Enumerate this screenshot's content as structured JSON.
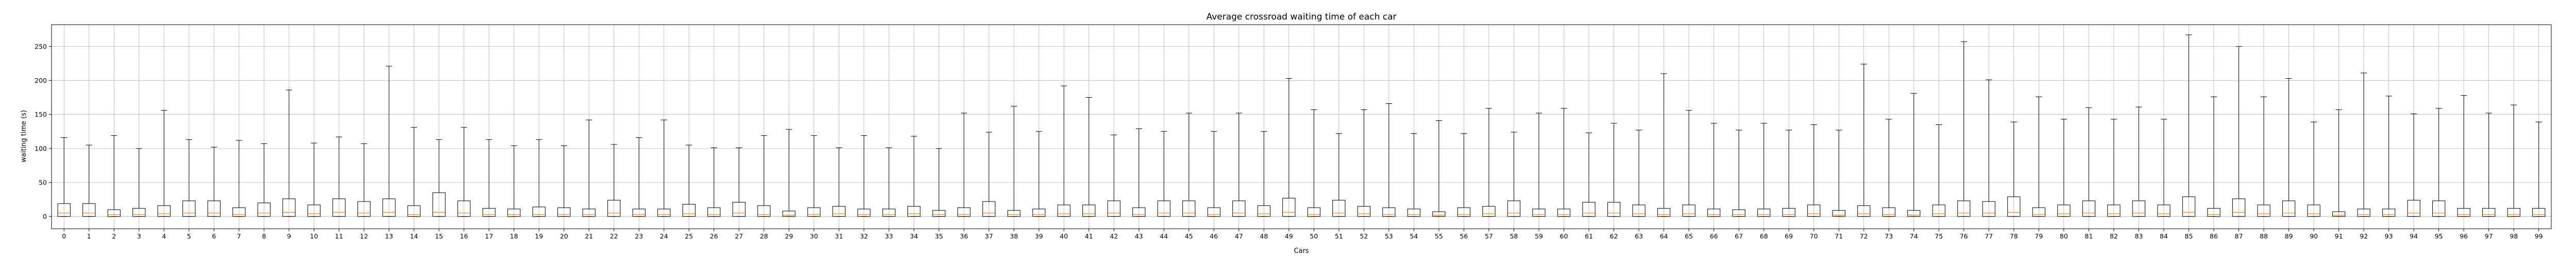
{
  "chart_data": {
    "type": "box",
    "title": "Average crossroad waiting time of each car",
    "xlabel": "Cars",
    "ylabel": "waiting time (s)",
    "ylim": [
      -18,
      282
    ],
    "yticks": [
      0,
      50,
      100,
      150,
      200,
      250
    ],
    "grid": true,
    "categories": [
      "0",
      "1",
      "2",
      "3",
      "4",
      "5",
      "6",
      "7",
      "8",
      "9",
      "10",
      "11",
      "12",
      "13",
      "14",
      "15",
      "16",
      "17",
      "18",
      "19",
      "20",
      "21",
      "22",
      "23",
      "24",
      "25",
      "26",
      "27",
      "28",
      "29",
      "30",
      "31",
      "32",
      "33",
      "34",
      "35",
      "36",
      "37",
      "38",
      "39",
      "40",
      "41",
      "42",
      "43",
      "44",
      "45",
      "46",
      "47",
      "48",
      "49",
      "50",
      "51",
      "52",
      "53",
      "54",
      "55",
      "56",
      "57",
      "58",
      "59",
      "60",
      "61",
      "62",
      "63",
      "64",
      "65",
      "66",
      "67",
      "68",
      "69",
      "70",
      "71",
      "72",
      "73",
      "74",
      "75",
      "76",
      "77",
      "78",
      "79",
      "80",
      "81",
      "82",
      "83",
      "84",
      "85",
      "86",
      "87",
      "88",
      "89",
      "90",
      "91",
      "92",
      "93",
      "94",
      "95",
      "96",
      "97",
      "98",
      "99"
    ],
    "q1": [
      0,
      0,
      0,
      0,
      0,
      0,
      0,
      0,
      0,
      0,
      0,
      0,
      0,
      0,
      0,
      0,
      0,
      0,
      0,
      0,
      0,
      0,
      0,
      0,
      0,
      0,
      0,
      0,
      0,
      0,
      0,
      0,
      0,
      0,
      0,
      0,
      0,
      0,
      0,
      0,
      0,
      0,
      0,
      0,
      0,
      0,
      0,
      0,
      0,
      0,
      0,
      0,
      0,
      0,
      0,
      0,
      0,
      0,
      0,
      0,
      0,
      0,
      0,
      0,
      0,
      0,
      0,
      0,
      0,
      0,
      0,
      0,
      0,
      0,
      0,
      0,
      0,
      0,
      0,
      0,
      0,
      0,
      0,
      0,
      0,
      0,
      0,
      0,
      0,
      0,
      0,
      0,
      0,
      0,
      0,
      0,
      0,
      0,
      0,
      0
    ],
    "median": [
      5,
      5,
      3,
      3,
      4,
      5,
      5,
      3,
      5,
      6,
      4,
      6,
      5,
      6,
      3,
      6,
      5,
      3,
      3,
      3,
      3,
      3,
      5,
      3,
      3,
      4,
      3,
      5,
      3,
      2,
      3,
      4,
      3,
      3,
      4,
      3,
      3,
      5,
      3,
      3,
      4,
      4,
      5,
      3,
      5,
      5,
      3,
      5,
      4,
      6,
      3,
      5,
      4,
      3,
      3,
      2,
      3,
      4,
      5,
      3,
      3,
      5,
      5,
      4,
      3,
      4,
      3,
      3,
      3,
      3,
      4,
      2,
      4,
      3,
      2,
      4,
      5,
      5,
      6,
      3,
      4,
      5,
      4,
      5,
      4,
      6,
      3,
      6,
      4,
      5,
      4,
      2,
      3,
      3,
      5,
      5,
      3,
      3,
      3,
      3
    ],
    "q3": [
      19,
      19,
      10,
      12,
      16,
      23,
      23,
      13,
      20,
      26,
      17,
      26,
      22,
      26,
      16,
      35,
      23,
      12,
      11,
      14,
      13,
      11,
      24,
      11,
      11,
      18,
      13,
      21,
      16,
      8,
      13,
      15,
      11,
      11,
      15,
      9,
      13,
      22,
      9,
      11,
      17,
      17,
      23,
      13,
      23,
      23,
      13,
      23,
      16,
      27,
      13,
      24,
      15,
      13,
      11,
      7,
      13,
      15,
      23,
      11,
      11,
      21,
      21,
      17,
      12,
      17,
      11,
      10,
      11,
      12,
      17,
      9,
      16,
      13,
      9,
      17,
      23,
      22,
      29,
      13,
      17,
      23,
      17,
      23,
      17,
      29,
      12,
      26,
      17,
      23,
      17,
      7,
      11,
      11,
      24,
      23,
      12,
      12,
      12,
      12
    ],
    "whisker_high": [
      116,
      105,
      119,
      100,
      156,
      113,
      102,
      112,
      107,
      186,
      108,
      117,
      107,
      221,
      131,
      113,
      131,
      113,
      104,
      113,
      104,
      142,
      106,
      116,
      142,
      105,
      101,
      101,
      119,
      128,
      119,
      101,
      119,
      101,
      118,
      100,
      152,
      124,
      162,
      125,
      192,
      175,
      120,
      129,
      125,
      152,
      125,
      152,
      125,
      203,
      157,
      122,
      157,
      166,
      122,
      141,
      122,
      159,
      124,
      152,
      159,
      123,
      137,
      127,
      210,
      156,
      137,
      127,
      137,
      127,
      135,
      127,
      224,
      143,
      181,
      135,
      257,
      201,
      139,
      176,
      143,
      160,
      143,
      161,
      143,
      267,
      176,
      250,
      176,
      203,
      139,
      157,
      211,
      177,
      151,
      159,
      178,
      152,
      164,
      139
    ],
    "whisker_low": [
      0,
      0,
      0,
      0,
      0,
      0,
      0,
      0,
      0,
      0,
      0,
      0,
      0,
      0,
      0,
      0,
      0,
      0,
      0,
      0,
      0,
      0,
      0,
      0,
      0,
      0,
      0,
      0,
      0,
      0,
      0,
      0,
      0,
      0,
      0,
      0,
      0,
      0,
      0,
      0,
      0,
      0,
      0,
      0,
      0,
      0,
      0,
      0,
      0,
      0,
      0,
      0,
      0,
      0,
      0,
      0,
      0,
      0,
      0,
      0,
      0,
      0,
      0,
      0,
      0,
      0,
      0,
      0,
      0,
      0,
      0,
      0,
      0,
      0,
      0,
      0,
      0,
      0,
      0,
      0,
      0,
      0,
      0,
      0,
      0,
      0,
      0,
      0,
      0,
      0,
      0,
      0,
      0,
      0,
      0,
      0,
      0,
      0,
      0,
      0
    ],
    "colors": {
      "box": "#000000",
      "median": "#ff7f0e",
      "grid": "#b0b0b0"
    }
  }
}
